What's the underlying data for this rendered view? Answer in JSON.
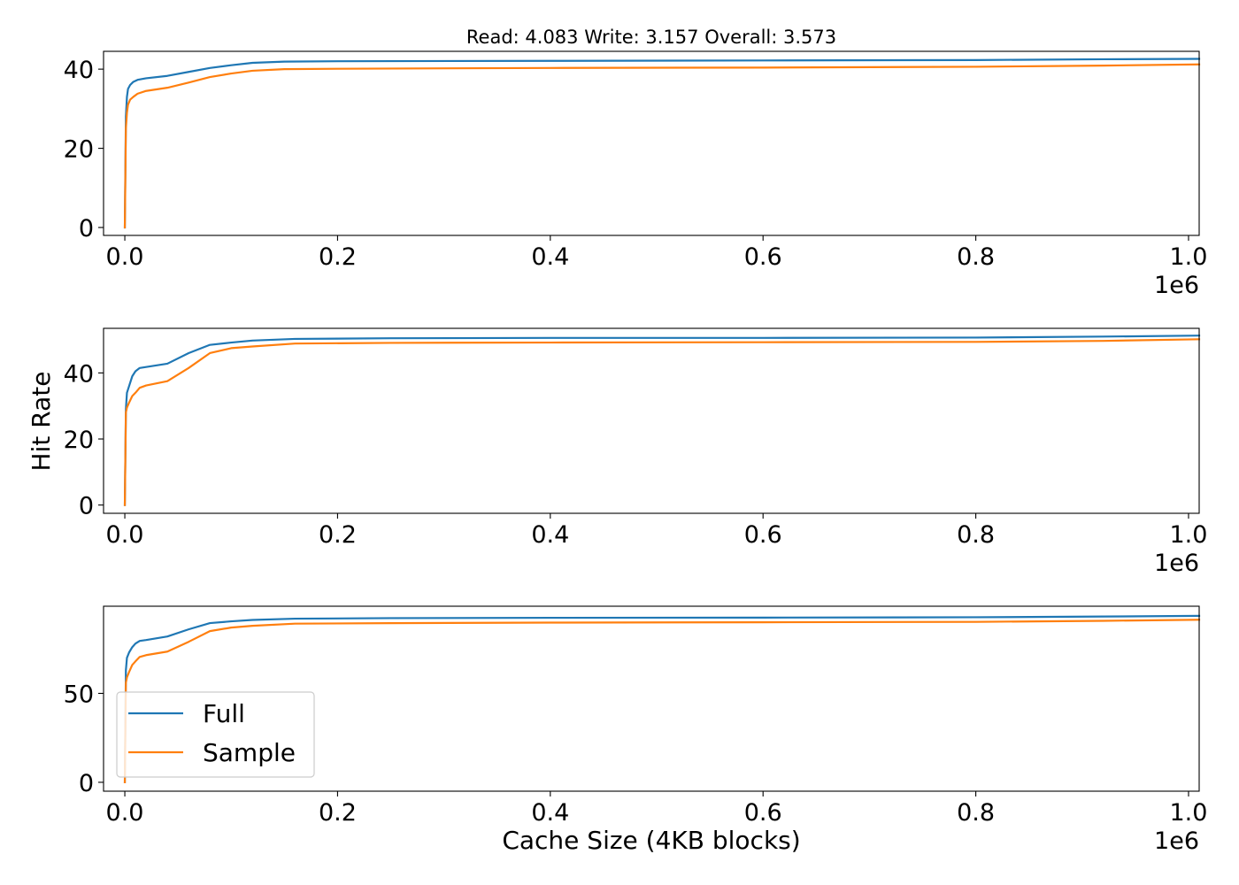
{
  "figure": {
    "title": "Read: 4.083 Write: 3.157 Overall: 3.573",
    "shared_xlabel": "Cache Size (4KB blocks)",
    "shared_ylabel": "Hit Rate",
    "x_offset_label": "1e6"
  },
  "legend": {
    "placement": "lower-left of bottom panel",
    "entries": [
      {
        "label": "Full",
        "color": "#1f77b4"
      },
      {
        "label": "Sample",
        "color": "#ff7f0e"
      }
    ]
  },
  "chart_data": [
    {
      "type": "line",
      "title": "Read: 4.083 Write: 3.157 Overall: 3.573",
      "xlabel": "",
      "ylabel": "",
      "xlim": [
        -0.02,
        1.01
      ],
      "ylim": [
        -2,
        44.5
      ],
      "x_ticks": [
        0.0,
        0.2,
        0.4,
        0.6,
        0.8,
        1.0
      ],
      "x_tick_labels": [
        "0.0",
        "0.2",
        "0.4",
        "0.6",
        "0.8",
        "1.0"
      ],
      "x_offset_text": "1e6",
      "y_ticks": [
        0,
        20,
        40
      ],
      "y_tick_labels": [
        "0",
        "20",
        "40"
      ],
      "grid": false,
      "series": [
        {
          "name": "Full",
          "color": "#1f77b4",
          "x": [
            0,
            0.001,
            0.002,
            0.003,
            0.005,
            0.008,
            0.012,
            0.02,
            0.04,
            0.06,
            0.08,
            0.1,
            0.12,
            0.15,
            0.2,
            0.4,
            0.6,
            0.8,
            0.92,
            1.01
          ],
          "y": [
            0,
            28,
            33,
            35,
            36,
            36.8,
            37.3,
            37.7,
            38.3,
            39.3,
            40.3,
            41,
            41.6,
            41.9,
            42,
            42.1,
            42.2,
            42.3,
            42.5,
            42.6
          ]
        },
        {
          "name": "Sample",
          "color": "#ff7f0e",
          "x": [
            0,
            0.001,
            0.002,
            0.003,
            0.005,
            0.008,
            0.012,
            0.02,
            0.04,
            0.06,
            0.08,
            0.1,
            0.12,
            0.15,
            0.2,
            0.4,
            0.6,
            0.8,
            0.92,
            1.01
          ],
          "y": [
            0,
            25,
            29,
            31,
            32.3,
            33,
            33.8,
            34.5,
            35.3,
            36.6,
            38,
            38.9,
            39.6,
            40,
            40.1,
            40.3,
            40.4,
            40.6,
            40.9,
            41.2
          ]
        }
      ]
    },
    {
      "type": "line",
      "title": "",
      "xlabel": "",
      "ylabel": "Hit Rate",
      "xlim": [
        -0.02,
        1.01
      ],
      "ylim": [
        -2.5,
        53.5
      ],
      "x_ticks": [
        0.0,
        0.2,
        0.4,
        0.6,
        0.8,
        1.0
      ],
      "x_tick_labels": [
        "0.0",
        "0.2",
        "0.4",
        "0.6",
        "0.8",
        "1.0"
      ],
      "x_offset_text": "1e6",
      "y_ticks": [
        0,
        20,
        40
      ],
      "y_tick_labels": [
        "0",
        "20",
        "40"
      ],
      "grid": false,
      "series": [
        {
          "name": "Full",
          "color": "#1f77b4",
          "x": [
            0,
            0.001,
            0.002,
            0.004,
            0.007,
            0.01,
            0.014,
            0.02,
            0.04,
            0.06,
            0.08,
            0.1,
            0.12,
            0.16,
            0.25,
            0.4,
            0.6,
            0.8,
            0.92,
            1.01
          ],
          "y": [
            0,
            29,
            34,
            36,
            39,
            40.5,
            41.5,
            41.8,
            42.8,
            46,
            48.5,
            49.2,
            49.8,
            50.3,
            50.5,
            50.6,
            50.6,
            50.7,
            51,
            51.3
          ]
        },
        {
          "name": "Sample",
          "color": "#ff7f0e",
          "x": [
            0,
            0.001,
            0.002,
            0.004,
            0.007,
            0.01,
            0.014,
            0.02,
            0.04,
            0.06,
            0.08,
            0.1,
            0.12,
            0.16,
            0.25,
            0.4,
            0.6,
            0.8,
            0.92,
            1.01
          ],
          "y": [
            0,
            28,
            29.5,
            31,
            33,
            34,
            35.5,
            36.2,
            37.5,
            41.5,
            46,
            47.5,
            48,
            48.9,
            49.1,
            49.2,
            49.3,
            49.4,
            49.7,
            50.2
          ]
        }
      ]
    },
    {
      "type": "line",
      "title": "",
      "xlabel": "Cache Size (4KB blocks)",
      "ylabel": "",
      "xlim": [
        -0.02,
        1.01
      ],
      "ylim": [
        -5,
        99
      ],
      "x_ticks": [
        0.0,
        0.2,
        0.4,
        0.6,
        0.8,
        1.0
      ],
      "x_tick_labels": [
        "0.0",
        "0.2",
        "0.4",
        "0.6",
        "0.8",
        "1.0"
      ],
      "x_offset_text": "1e6",
      "y_ticks": [
        0,
        50
      ],
      "y_tick_labels": [
        "0",
        "50"
      ],
      "grid": false,
      "series": [
        {
          "name": "Full",
          "color": "#1f77b4",
          "x": [
            0,
            0.001,
            0.002,
            0.004,
            0.007,
            0.01,
            0.014,
            0.02,
            0.04,
            0.06,
            0.08,
            0.1,
            0.12,
            0.16,
            0.25,
            0.4,
            0.6,
            0.8,
            0.92,
            1.01
          ],
          "y": [
            0,
            63,
            70,
            73,
            76,
            78,
            79.5,
            80,
            82,
            86,
            89.5,
            90.5,
            91.3,
            92,
            92.3,
            92.5,
            92.6,
            92.8,
            93.2,
            93.6
          ]
        },
        {
          "name": "Sample",
          "color": "#ff7f0e",
          "x": [
            0,
            0.001,
            0.002,
            0.004,
            0.007,
            0.01,
            0.014,
            0.02,
            0.04,
            0.06,
            0.08,
            0.1,
            0.12,
            0.16,
            0.25,
            0.4,
            0.6,
            0.8,
            0.92,
            1.01
          ],
          "y": [
            0,
            56,
            59,
            62,
            66,
            68,
            70.5,
            71.5,
            73.5,
            79,
            85,
            87,
            88,
            89.2,
            89.5,
            89.8,
            90,
            90.2,
            90.8,
            91.4
          ]
        }
      ]
    }
  ]
}
